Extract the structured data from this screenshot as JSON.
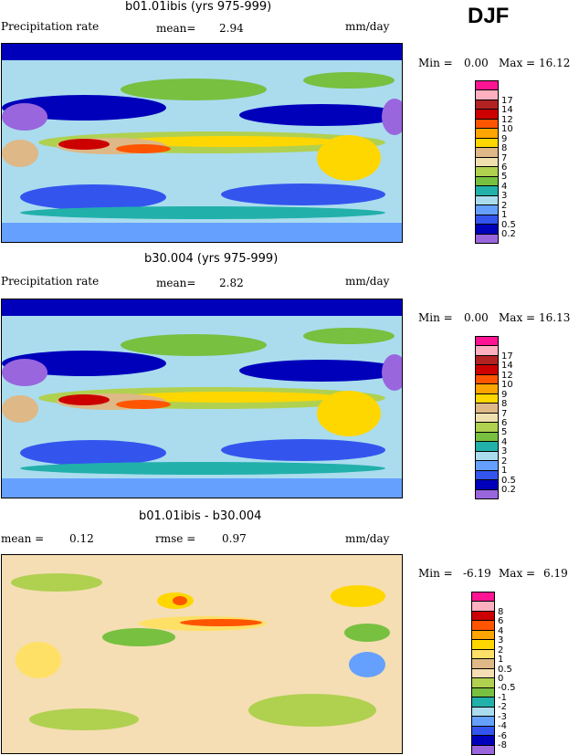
{
  "season": "DJF",
  "panels": [
    {
      "title": "b01.01ibis (yrs 975-999)",
      "left_label": "Precipitation rate",
      "stat_label": "mean=",
      "stat_value": "2.94",
      "stat2_label": "",
      "stat2_value": "",
      "units": "mm/day",
      "min_label": "Min =",
      "min_value": "0.00",
      "max_label": "Max =",
      "max_value": "16.12",
      "kind": "abs"
    },
    {
      "title": "b30.004 (yrs 975-999)",
      "left_label": "Precipitation rate",
      "stat_label": "mean=",
      "stat_value": "2.82",
      "stat2_label": "",
      "stat2_value": "",
      "units": "mm/day",
      "min_label": "Min =",
      "min_value": "0.00",
      "max_label": "Max =",
      "max_value": "16.13",
      "kind": "abs"
    },
    {
      "title": "b01.01ibis - b30.004",
      "left_label": "mean =",
      "stat_label": "0.12",
      "stat_value": "",
      "stat2_label": "rmse =",
      "stat2_value": "0.97",
      "units": "mm/day",
      "min_label": "Min =",
      "min_value": "-6.19",
      "max_label": "Max =",
      "max_value": "6.19",
      "kind": "diff"
    }
  ],
  "chart_data": [
    {
      "type": "heatmap",
      "title": "b01.01ibis (yrs 975-999)",
      "variable": "Precipitation rate",
      "units": "mm/day",
      "mean": 2.94,
      "min": 0.0,
      "max": 16.12,
      "levels": [
        "0.2",
        "0.5",
        "1",
        "2",
        "3",
        "4",
        "5",
        "6",
        "7",
        "8",
        "9",
        "10",
        "12",
        "14",
        "17"
      ],
      "colors": [
        "#9966dd",
        "#0000bb",
        "#3355ee",
        "#66a0ff",
        "#aadcee",
        "#22b0aa",
        "#77c040",
        "#b0d050",
        "#f0e0b0",
        "#deb887",
        "#ffd700",
        "#ffa500",
        "#ff5500",
        "#cc0000",
        "#b22222",
        "#ffb0c0",
        "#ff1493"
      ]
    },
    {
      "type": "heatmap",
      "title": "b30.004 (yrs 975-999)",
      "variable": "Precipitation rate",
      "units": "mm/day",
      "mean": 2.82,
      "min": 0.0,
      "max": 16.13,
      "levels": [
        "0.2",
        "0.5",
        "1",
        "2",
        "3",
        "4",
        "5",
        "6",
        "7",
        "8",
        "9",
        "10",
        "12",
        "14",
        "17"
      ],
      "colors": [
        "#9966dd",
        "#0000bb",
        "#3355ee",
        "#66a0ff",
        "#aadcee",
        "#22b0aa",
        "#77c040",
        "#b0d050",
        "#f0e0b0",
        "#deb887",
        "#ffd700",
        "#ffa500",
        "#ff5500",
        "#cc0000",
        "#b22222",
        "#ffb0c0",
        "#ff1493"
      ]
    },
    {
      "type": "heatmap",
      "title": "b01.01ibis - b30.004",
      "units": "mm/day",
      "mean": 0.12,
      "rmse": 0.97,
      "min": -6.19,
      "max": 6.19,
      "levels": [
        "-8",
        "-6",
        "-4",
        "-3",
        "-2",
        "-1",
        "-0.5",
        "0",
        "0.5",
        "1",
        "2",
        "3",
        "4",
        "6",
        "8"
      ],
      "colors": [
        "#9966dd",
        "#0000bb",
        "#3355ee",
        "#66a0ff",
        "#aadcee",
        "#22b0aa",
        "#77c040",
        "#b0d050",
        "#f5deb3",
        "#deb887",
        "#ffe066",
        "#ffd700",
        "#ffa500",
        "#ff5500",
        "#cc0000",
        "#ffb0c0",
        "#ff1493"
      ]
    }
  ]
}
